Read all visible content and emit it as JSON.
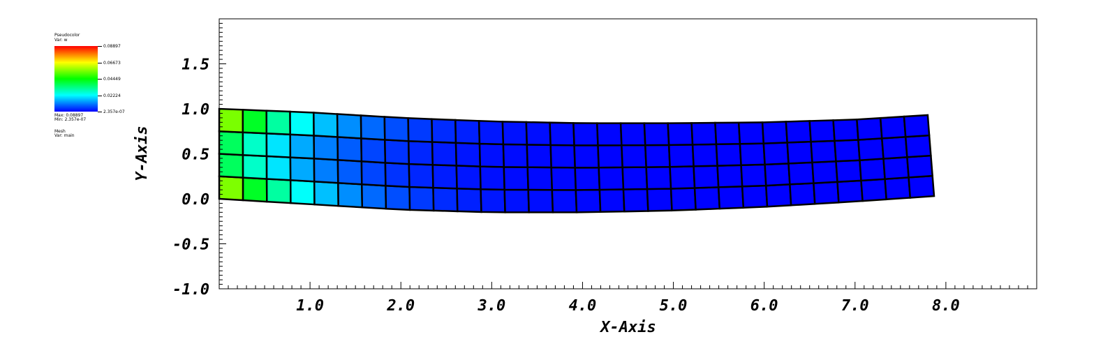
{
  "legend": {
    "plot_name": "Pseudocolor",
    "var_line": "Var: w",
    "ticks": [
      "0.08897",
      "0.06673",
      "0.04449",
      "0.02224",
      "2.357e-07"
    ],
    "max_line": "Max: 0.08897",
    "min_line": "Min: 2.357e-07",
    "mesh_name": "Mesh",
    "mesh_var": "Var: main",
    "colors": [
      "#ff0000",
      "#ffff00",
      "#00ff00",
      "#00ffff",
      "#0000ff"
    ]
  },
  "chart_data": {
    "type": "pseudocolor mesh",
    "xlabel": "X-Axis",
    "ylabel": "Y-Axis",
    "xlim": [
      0,
      9.0
    ],
    "ylim": [
      -1.0,
      2.0
    ],
    "xticks": [
      "1.0",
      "2.0",
      "3.0",
      "4.0",
      "5.0",
      "6.0",
      "7.0",
      "8.0"
    ],
    "yticks": [
      "-1.0",
      "-0.5",
      "0.0",
      "0.5",
      "1.0",
      "1.5"
    ],
    "xtick_values": [
      1,
      2,
      3,
      4,
      5,
      6,
      7,
      8
    ],
    "ytick_values": [
      -1.0,
      -0.5,
      0.0,
      0.5,
      1.0,
      1.5
    ],
    "mesh": {
      "columns": 30,
      "rows": 4,
      "bottom_edge": [
        [
          0.0,
          0.0
        ],
        [
          1.0,
          -0.06
        ],
        [
          2.0,
          -0.12
        ],
        [
          3.0,
          -0.15
        ],
        [
          4.0,
          -0.15
        ],
        [
          5.0,
          -0.13
        ],
        [
          6.0,
          -0.09
        ],
        [
          7.0,
          -0.03
        ],
        [
          7.87,
          0.03
        ]
      ],
      "top_edge": [
        [
          0.0,
          1.0
        ],
        [
          1.0,
          0.96
        ],
        [
          2.0,
          0.9
        ],
        [
          3.0,
          0.86
        ],
        [
          4.0,
          0.84
        ],
        [
          5.0,
          0.84
        ],
        [
          6.0,
          0.85
        ],
        [
          7.0,
          0.88
        ],
        [
          7.8,
          0.93
        ]
      ],
      "w_peak_location": [
        0.0,
        0.95
      ],
      "w_range": [
        2.357e-07,
        0.08897
      ]
    }
  }
}
